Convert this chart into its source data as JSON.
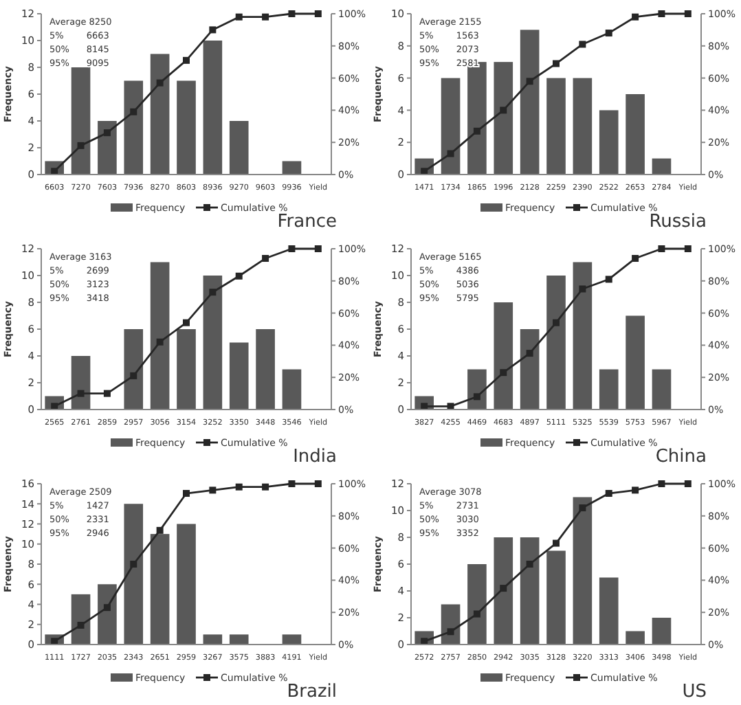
{
  "chart_data": [
    {
      "type": "bar",
      "categories": [
        "6603",
        "7270",
        "7603",
        "7936",
        "8270",
        "8603",
        "8936",
        "9270",
        "9603",
        "9936",
        "Yield"
      ],
      "ylabel": "Frequency",
      "ylim": [
        0,
        12
      ],
      "yticks": [
        0,
        2,
        4,
        6,
        8,
        10,
        12
      ],
      "y2lim": [
        0,
        100
      ],
      "y2ticks": [
        {
          "value": 0,
          "label": "0%"
        },
        {
          "value": 20,
          "label": "20%"
        },
        {
          "value": 40,
          "label": "40%"
        },
        {
          "value": 60,
          "label": "60%"
        },
        {
          "value": 80,
          "label": "80%"
        },
        {
          "value": 100,
          "label": "100%"
        }
      ],
      "legend": "bottom",
      "annotations": [
        "Average 8250",
        "5%        6663",
        "50%      8145",
        "95%      9095",
        "France"
      ],
      "series": [
        {
          "name": "Frequency",
          "color": "#595959",
          "values": [
            1,
            8,
            4,
            7,
            9,
            7,
            10,
            4,
            0,
            1,
            0
          ]
        },
        {
          "name": "Cumulative %",
          "type": "line",
          "axis": "y2",
          "marker": "square",
          "color": "#262626",
          "values": [
            2,
            18,
            26,
            39,
            57,
            71,
            90,
            98,
            98,
            100,
            100
          ]
        }
      ]
    },
    {
      "type": "bar",
      "categories": [
        "1471",
        "1734",
        "1865",
        "1996",
        "2128",
        "2259",
        "2390",
        "2522",
        "2653",
        "2784",
        "Yield"
      ],
      "ylabel": "Frequency",
      "ylim": [
        0,
        10
      ],
      "yticks": [
        0,
        2,
        4,
        6,
        8,
        10
      ],
      "y2lim": [
        0,
        100
      ],
      "y2ticks": [
        {
          "value": 0,
          "label": "0%"
        },
        {
          "value": 20,
          "label": "20%"
        },
        {
          "value": 40,
          "label": "40%"
        },
        {
          "value": 60,
          "label": "60%"
        },
        {
          "value": 80,
          "label": "80%"
        },
        {
          "value": 100,
          "label": "100%"
        }
      ],
      "legend": "bottom",
      "annotations": [
        "Average 2155",
        "5%        1563",
        "50%      2073",
        "95%      2581",
        "Russia"
      ],
      "series": [
        {
          "name": "Frequency",
          "color": "#595959",
          "values": [
            1,
            6,
            7,
            7,
            9,
            6,
            6,
            4,
            5,
            1,
            0
          ]
        },
        {
          "name": "Cumulative %",
          "type": "line",
          "axis": "y2",
          "marker": "square",
          "color": "#262626",
          "values": [
            2,
            13,
            27,
            40,
            58,
            69,
            81,
            88,
            98,
            100,
            100
          ]
        }
      ]
    },
    {
      "type": "bar",
      "categories": [
        "2565",
        "2761",
        "2859",
        "2957",
        "3056",
        "3154",
        "3252",
        "3350",
        "3448",
        "3546",
        "Yield"
      ],
      "ylabel": "Frequency",
      "ylim": [
        0,
        12
      ],
      "yticks": [
        0,
        2,
        4,
        6,
        8,
        10,
        12
      ],
      "y2lim": [
        0,
        100
      ],
      "y2ticks": [
        {
          "value": 0,
          "label": "0%"
        },
        {
          "value": 20,
          "label": "20%"
        },
        {
          "value": 40,
          "label": "40%"
        },
        {
          "value": 60,
          "label": "60%"
        },
        {
          "value": 80,
          "label": "80%"
        },
        {
          "value": 100,
          "label": "100%"
        }
      ],
      "legend": "bottom",
      "annotations": [
        "Average 3163",
        "5%        2699",
        "50%      3123",
        "95%      3418",
        "India"
      ],
      "series": [
        {
          "name": "Frequency",
          "color": "#595959",
          "values": [
            1,
            4,
            0,
            6,
            11,
            6,
            10,
            5,
            6,
            3,
            0
          ]
        },
        {
          "name": "Cumulative %",
          "type": "line",
          "axis": "y2",
          "marker": "square",
          "color": "#262626",
          "values": [
            2,
            10,
            10,
            21,
            42,
            54,
            73,
            83,
            94,
            100,
            100
          ]
        }
      ]
    },
    {
      "type": "bar",
      "categories": [
        "3827",
        "4255",
        "4469",
        "4683",
        "4897",
        "5111",
        "5325",
        "5539",
        "5753",
        "5967",
        "Yield"
      ],
      "ylabel": "Frequency",
      "ylim": [
        0,
        12
      ],
      "yticks": [
        0,
        2,
        4,
        6,
        8,
        10,
        12
      ],
      "y2lim": [
        0,
        100
      ],
      "y2ticks": [
        {
          "value": 0,
          "label": "0%"
        },
        {
          "value": 20,
          "label": "20%"
        },
        {
          "value": 40,
          "label": "40%"
        },
        {
          "value": 60,
          "label": "60%"
        },
        {
          "value": 80,
          "label": "80%"
        },
        {
          "value": 100,
          "label": "100%"
        }
      ],
      "legend": "bottom",
      "annotations": [
        "Average 5165",
        "5%        4386",
        "50%      5036",
        "95%      5795",
        "China"
      ],
      "series": [
        {
          "name": "Frequency",
          "color": "#595959",
          "values": [
            1,
            0,
            3,
            8,
            6,
            10,
            11,
            3,
            7,
            3,
            0
          ]
        },
        {
          "name": "Cumulative %",
          "type": "line",
          "axis": "y2",
          "marker": "square",
          "color": "#262626",
          "values": [
            2,
            2,
            8,
            23,
            35,
            54,
            75,
            81,
            94,
            100,
            100
          ]
        }
      ]
    },
    {
      "type": "bar",
      "categories": [
        "1111",
        "1727",
        "2035",
        "2343",
        "2651",
        "2959",
        "3267",
        "3575",
        "3883",
        "4191",
        "Yield"
      ],
      "ylabel": "Frequency",
      "ylim": [
        0,
        16
      ],
      "yticks": [
        0,
        2,
        4,
        6,
        8,
        10,
        12,
        14,
        16
      ],
      "y2lim": [
        0,
        100
      ],
      "y2ticks": [
        {
          "value": 0,
          "label": "0%"
        },
        {
          "value": 20,
          "label": "20%"
        },
        {
          "value": 40,
          "label": "40%"
        },
        {
          "value": 60,
          "label": "60%"
        },
        {
          "value": 80,
          "label": "80%"
        },
        {
          "value": 100,
          "label": "100%"
        }
      ],
      "legend": "bottom",
      "annotations": [
        "Average 2509",
        "5%        1427",
        "50%      2331",
        "95%      2946",
        "Brazil"
      ],
      "series": [
        {
          "name": "Frequency",
          "color": "#595959",
          "values": [
            1,
            5,
            6,
            14,
            11,
            12,
            1,
            1,
            0,
            1,
            0
          ]
        },
        {
          "name": "Cumulative %",
          "type": "line",
          "axis": "y2",
          "marker": "square",
          "color": "#262626",
          "values": [
            2,
            12,
            23,
            50,
            71,
            94,
            96,
            98,
            98,
            100,
            100
          ]
        }
      ]
    },
    {
      "type": "bar",
      "categories": [
        "2572",
        "2757",
        "2850",
        "2942",
        "3035",
        "3128",
        "3220",
        "3313",
        "3406",
        "3498",
        "Yield"
      ],
      "ylabel": "Frequency",
      "ylim": [
        0,
        12
      ],
      "yticks": [
        0,
        2,
        4,
        6,
        8,
        10,
        12
      ],
      "y2lim": [
        0,
        100
      ],
      "y2ticks": [
        {
          "value": 0,
          "label": "0%"
        },
        {
          "value": 20,
          "label": "20%"
        },
        {
          "value": 40,
          "label": "40%"
        },
        {
          "value": 60,
          "label": "60%"
        },
        {
          "value": 80,
          "label": "80%"
        },
        {
          "value": 100,
          "label": "100%"
        }
      ],
      "legend": "bottom",
      "annotations": [
        "Average 3078",
        "5%        2731",
        "50%      3030",
        "95%      3352",
        "US"
      ],
      "series": [
        {
          "name": "Frequency",
          "color": "#595959",
          "values": [
            1,
            3,
            6,
            8,
            8,
            7,
            11,
            5,
            1,
            2,
            0
          ]
        },
        {
          "name": "Cumulative %",
          "type": "line",
          "axis": "y2",
          "marker": "square",
          "color": "#262626",
          "values": [
            2,
            8,
            19,
            35,
            50,
            63,
            85,
            94,
            96,
            100,
            100
          ]
        }
      ]
    }
  ]
}
